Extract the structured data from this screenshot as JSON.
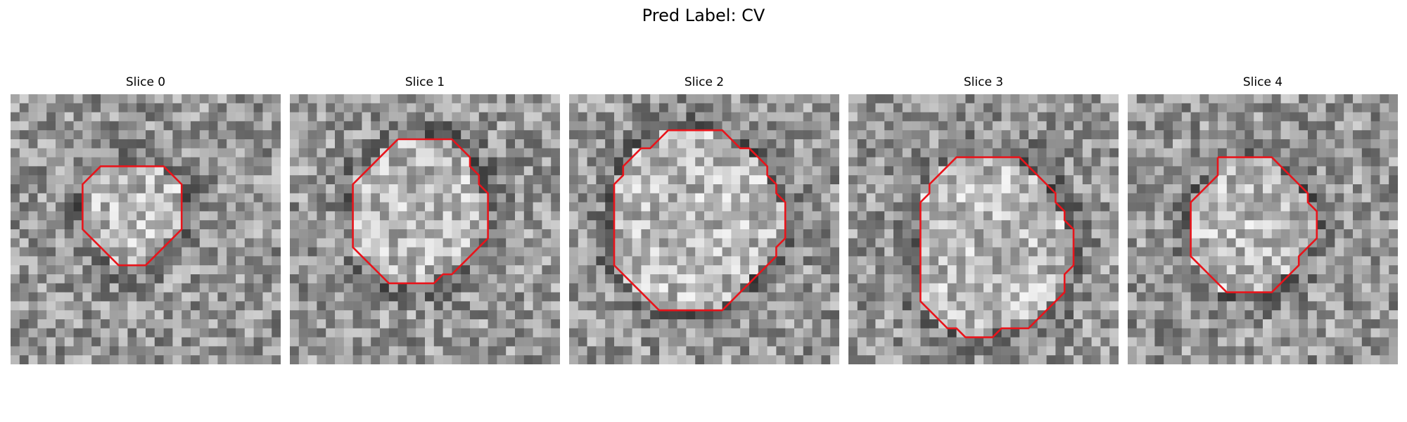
{
  "figure": {
    "title": "Pred Label: CV"
  },
  "panels": [
    {
      "title": "Slice 0",
      "contour": [
        [
          11,
          8
        ],
        [
          12,
          8
        ],
        [
          13,
          8
        ],
        [
          14,
          8
        ],
        [
          15,
          8
        ],
        [
          16,
          8
        ],
        [
          17,
          8
        ],
        [
          18,
          9
        ],
        [
          19,
          10
        ],
        [
          19,
          11
        ],
        [
          19,
          12
        ],
        [
          19,
          13
        ],
        [
          19,
          14
        ],
        [
          19,
          15
        ],
        [
          18,
          16
        ],
        [
          17,
          17
        ],
        [
          16,
          18
        ],
        [
          15,
          19
        ],
        [
          14,
          19
        ],
        [
          13,
          19
        ],
        [
          12,
          19
        ],
        [
          11,
          18
        ],
        [
          10,
          17
        ],
        [
          9,
          16
        ],
        [
          8,
          15
        ],
        [
          8,
          14
        ],
        [
          8,
          13
        ],
        [
          8,
          12
        ],
        [
          8,
          11
        ],
        [
          8,
          10
        ],
        [
          9,
          9
        ],
        [
          10,
          8
        ],
        [
          11,
          8
        ]
      ]
    },
    {
      "title": "Slice 1",
      "contour": [
        [
          12,
          5
        ],
        [
          13,
          5
        ],
        [
          14,
          5
        ],
        [
          15,
          5
        ],
        [
          16,
          5
        ],
        [
          17,
          5
        ],
        [
          18,
          5
        ],
        [
          19,
          6
        ],
        [
          20,
          7
        ],
        [
          20,
          8
        ],
        [
          21,
          9
        ],
        [
          21,
          10
        ],
        [
          22,
          11
        ],
        [
          22,
          12
        ],
        [
          22,
          13
        ],
        [
          22,
          14
        ],
        [
          22,
          15
        ],
        [
          22,
          16
        ],
        [
          21,
          17
        ],
        [
          20,
          18
        ],
        [
          19,
          19
        ],
        [
          18,
          20
        ],
        [
          17,
          20
        ],
        [
          16,
          21
        ],
        [
          15,
          21
        ],
        [
          14,
          21
        ],
        [
          13,
          21
        ],
        [
          12,
          21
        ],
        [
          11,
          21
        ],
        [
          10,
          20
        ],
        [
          9,
          19
        ],
        [
          8,
          18
        ],
        [
          7,
          17
        ],
        [
          7,
          16
        ],
        [
          7,
          15
        ],
        [
          7,
          14
        ],
        [
          7,
          13
        ],
        [
          7,
          12
        ],
        [
          7,
          11
        ],
        [
          7,
          10
        ],
        [
          8,
          9
        ],
        [
          9,
          8
        ],
        [
          10,
          7
        ],
        [
          11,
          6
        ],
        [
          12,
          5
        ]
      ]
    },
    {
      "title": "Slice 2",
      "contour": [
        [
          12,
          4
        ],
        [
          13,
          4
        ],
        [
          14,
          4
        ],
        [
          15,
          4
        ],
        [
          16,
          4
        ],
        [
          17,
          4
        ],
        [
          18,
          5
        ],
        [
          19,
          6
        ],
        [
          20,
          6
        ],
        [
          21,
          7
        ],
        [
          22,
          8
        ],
        [
          22,
          9
        ],
        [
          23,
          10
        ],
        [
          23,
          11
        ],
        [
          24,
          12
        ],
        [
          24,
          13
        ],
        [
          24,
          14
        ],
        [
          24,
          15
        ],
        [
          24,
          16
        ],
        [
          23,
          17
        ],
        [
          23,
          18
        ],
        [
          22,
          19
        ],
        [
          21,
          20
        ],
        [
          20,
          21
        ],
        [
          19,
          22
        ],
        [
          18,
          23
        ],
        [
          17,
          24
        ],
        [
          16,
          24
        ],
        [
          15,
          24
        ],
        [
          14,
          24
        ],
        [
          13,
          24
        ],
        [
          12,
          24
        ],
        [
          11,
          24
        ],
        [
          10,
          24
        ],
        [
          9,
          23
        ],
        [
          8,
          22
        ],
        [
          7,
          21
        ],
        [
          6,
          20
        ],
        [
          5,
          19
        ],
        [
          5,
          18
        ],
        [
          5,
          17
        ],
        [
          5,
          16
        ],
        [
          5,
          15
        ],
        [
          5,
          14
        ],
        [
          5,
          13
        ],
        [
          5,
          12
        ],
        [
          5,
          11
        ],
        [
          5,
          10
        ],
        [
          6,
          9
        ],
        [
          6,
          8
        ],
        [
          7,
          7
        ],
        [
          8,
          6
        ],
        [
          9,
          6
        ],
        [
          10,
          5
        ],
        [
          11,
          4
        ],
        [
          12,
          4
        ]
      ]
    },
    {
      "title": "Slice 3",
      "contour": [
        [
          13,
          7
        ],
        [
          14,
          7
        ],
        [
          15,
          7
        ],
        [
          16,
          7
        ],
        [
          17,
          7
        ],
        [
          18,
          7
        ],
        [
          19,
          7
        ],
        [
          20,
          8
        ],
        [
          21,
          9
        ],
        [
          22,
          10
        ],
        [
          23,
          11
        ],
        [
          23,
          12
        ],
        [
          24,
          13
        ],
        [
          24,
          14
        ],
        [
          25,
          15
        ],
        [
          25,
          16
        ],
        [
          25,
          17
        ],
        [
          25,
          18
        ],
        [
          25,
          19
        ],
        [
          24,
          20
        ],
        [
          24,
          21
        ],
        [
          24,
          22
        ],
        [
          23,
          23
        ],
        [
          22,
          24
        ],
        [
          21,
          25
        ],
        [
          20,
          26
        ],
        [
          19,
          26
        ],
        [
          18,
          26
        ],
        [
          17,
          26
        ],
        [
          16,
          27
        ],
        [
          15,
          27
        ],
        [
          14,
          27
        ],
        [
          13,
          27
        ],
        [
          12,
          26
        ],
        [
          11,
          26
        ],
        [
          10,
          25
        ],
        [
          9,
          24
        ],
        [
          8,
          23
        ],
        [
          8,
          22
        ],
        [
          8,
          21
        ],
        [
          8,
          20
        ],
        [
          8,
          19
        ],
        [
          8,
          18
        ],
        [
          8,
          17
        ],
        [
          8,
          16
        ],
        [
          8,
          15
        ],
        [
          8,
          14
        ],
        [
          8,
          13
        ],
        [
          8,
          12
        ],
        [
          9,
          11
        ],
        [
          9,
          10
        ],
        [
          10,
          9
        ],
        [
          11,
          8
        ],
        [
          12,
          7
        ],
        [
          13,
          7
        ]
      ]
    },
    {
      "title": "Slice 4",
      "contour": [
        [
          10,
          7
        ],
        [
          11,
          7
        ],
        [
          12,
          7
        ],
        [
          13,
          7
        ],
        [
          14,
          7
        ],
        [
          15,
          7
        ],
        [
          16,
          7
        ],
        [
          17,
          8
        ],
        [
          18,
          9
        ],
        [
          19,
          10
        ],
        [
          20,
          11
        ],
        [
          20,
          12
        ],
        [
          21,
          13
        ],
        [
          21,
          14
        ],
        [
          21,
          15
        ],
        [
          21,
          16
        ],
        [
          20,
          17
        ],
        [
          19,
          18
        ],
        [
          19,
          19
        ],
        [
          18,
          20
        ],
        [
          17,
          21
        ],
        [
          16,
          22
        ],
        [
          15,
          22
        ],
        [
          14,
          22
        ],
        [
          13,
          22
        ],
        [
          12,
          22
        ],
        [
          11,
          22
        ],
        [
          10,
          21
        ],
        [
          9,
          20
        ],
        [
          8,
          19
        ],
        [
          7,
          18
        ],
        [
          7,
          17
        ],
        [
          7,
          16
        ],
        [
          7,
          15
        ],
        [
          7,
          14
        ],
        [
          7,
          13
        ],
        [
          7,
          12
        ],
        [
          8,
          11
        ],
        [
          9,
          10
        ],
        [
          10,
          9
        ],
        [
          10,
          8
        ],
        [
          10,
          7
        ]
      ]
    }
  ],
  "colors": {
    "contour": "#e8141b"
  }
}
